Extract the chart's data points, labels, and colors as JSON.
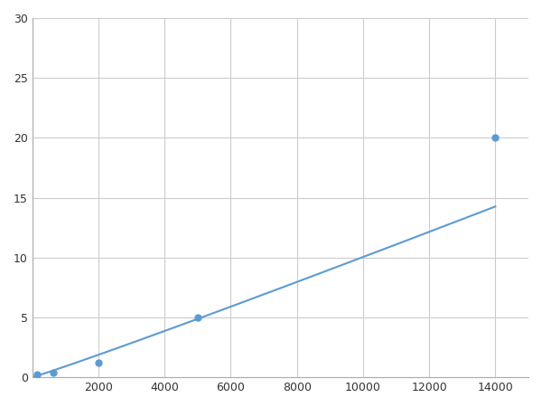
{
  "x_data": [
    156,
    625,
    2000,
    5000,
    14000
  ],
  "y_data": [
    0.2,
    0.4,
    1.2,
    5.0,
    20.0
  ],
  "line_color": "#5b9bd5",
  "marker_color": "#5b9bd5",
  "marker_size": 5,
  "line_width": 1.5,
  "xlim": [
    0,
    15000
  ],
  "ylim": [
    0,
    30
  ],
  "xticks": [
    0,
    2000,
    4000,
    6000,
    8000,
    10000,
    12000,
    14000
  ],
  "yticks": [
    0,
    5,
    10,
    15,
    20,
    25,
    30
  ],
  "xtick_labels": [
    "",
    "2000",
    "4000",
    "6000",
    "8000",
    "10000",
    "12000",
    "14000"
  ],
  "grid_color": "#cccccc",
  "background_color": "#ffffff",
  "figsize": [
    6.0,
    4.5
  ],
  "dpi": 100
}
